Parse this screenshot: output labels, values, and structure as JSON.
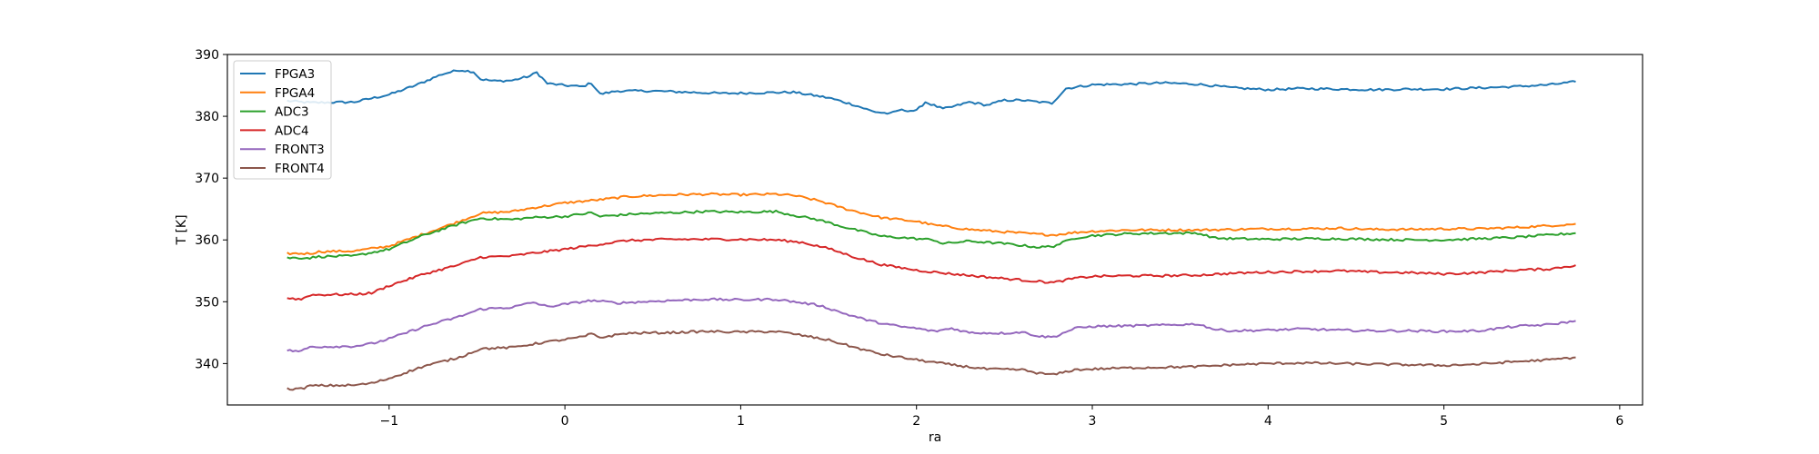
{
  "chart_data": {
    "type": "line",
    "title": "",
    "xlabel": "ra",
    "ylabel": "T [K]",
    "xlim": [
      -1.92,
      6.13
    ],
    "ylim": [
      333.3,
      390.0
    ],
    "xticks": [
      -1,
      0,
      1,
      2,
      3,
      4,
      5,
      6
    ],
    "xtick_labels": [
      "−1",
      "0",
      "1",
      "2",
      "3",
      "4",
      "5",
      "6"
    ],
    "yticks": [
      340,
      350,
      360,
      370,
      380,
      390
    ],
    "ytick_labels": [
      "340",
      "350",
      "360",
      "370",
      "380",
      "390"
    ],
    "grid": false,
    "legend_position": "top-left",
    "series": [
      {
        "name": "FPGA3",
        "color": "#1f77b4",
        "points": [
          [
            -1.58,
            382.5
          ],
          [
            -1.45,
            382.2
          ],
          [
            -1.2,
            382.3
          ],
          [
            -1.0,
            383.5
          ],
          [
            -0.85,
            385.0
          ],
          [
            -0.7,
            386.8
          ],
          [
            -0.6,
            387.5
          ],
          [
            -0.52,
            387.2
          ],
          [
            -0.48,
            386.0
          ],
          [
            -0.4,
            385.7
          ],
          [
            -0.3,
            385.8
          ],
          [
            -0.2,
            386.5
          ],
          [
            -0.16,
            387.1
          ],
          [
            -0.1,
            385.3
          ],
          [
            0.0,
            385.0
          ],
          [
            0.1,
            384.8
          ],
          [
            0.15,
            385.4
          ],
          [
            0.2,
            383.6
          ],
          [
            0.3,
            384.1
          ],
          [
            0.5,
            384.1
          ],
          [
            0.7,
            383.9
          ],
          [
            0.9,
            383.7
          ],
          [
            1.1,
            383.8
          ],
          [
            1.3,
            383.9
          ],
          [
            1.5,
            383.0
          ],
          [
            1.65,
            381.8
          ],
          [
            1.75,
            380.8
          ],
          [
            1.85,
            380.4
          ],
          [
            1.9,
            381.0
          ],
          [
            2.0,
            380.9
          ],
          [
            2.05,
            382.3
          ],
          [
            2.15,
            381.2
          ],
          [
            2.2,
            381.5
          ],
          [
            2.3,
            382.3
          ],
          [
            2.4,
            381.8
          ],
          [
            2.5,
            382.6
          ],
          [
            2.6,
            382.6
          ],
          [
            2.7,
            382.3
          ],
          [
            2.77,
            382.1
          ],
          [
            2.85,
            384.5
          ],
          [
            3.0,
            385.1
          ],
          [
            3.2,
            385.2
          ],
          [
            3.4,
            385.4
          ],
          [
            3.6,
            385.2
          ],
          [
            3.8,
            384.6
          ],
          [
            4.0,
            384.3
          ],
          [
            4.2,
            384.5
          ],
          [
            4.4,
            384.4
          ],
          [
            4.6,
            384.3
          ],
          [
            4.8,
            384.4
          ],
          [
            5.0,
            384.4
          ],
          [
            5.2,
            384.6
          ],
          [
            5.4,
            384.8
          ],
          [
            5.6,
            385.1
          ],
          [
            5.75,
            385.6
          ]
        ]
      },
      {
        "name": "FPGA4",
        "color": "#ff7f0e",
        "points": [
          [
            -1.58,
            357.8
          ],
          [
            -1.45,
            357.8
          ],
          [
            -1.4,
            358.1
          ],
          [
            -1.2,
            358.2
          ],
          [
            -1.0,
            359.0
          ],
          [
            -0.8,
            361.0
          ],
          [
            -0.6,
            363.0
          ],
          [
            -0.48,
            364.3
          ],
          [
            -0.3,
            364.6
          ],
          [
            -0.2,
            365.1
          ],
          [
            0.0,
            366.0
          ],
          [
            0.2,
            366.5
          ],
          [
            0.35,
            367.0
          ],
          [
            0.6,
            367.3
          ],
          [
            0.8,
            367.4
          ],
          [
            1.0,
            367.3
          ],
          [
            1.2,
            367.4
          ],
          [
            1.3,
            367.2
          ],
          [
            1.45,
            366.3
          ],
          [
            1.6,
            365.0
          ],
          [
            1.8,
            363.6
          ],
          [
            2.0,
            363.0
          ],
          [
            2.1,
            362.4
          ],
          [
            2.3,
            361.7
          ],
          [
            2.5,
            361.3
          ],
          [
            2.7,
            360.9
          ],
          [
            2.78,
            360.8
          ],
          [
            2.9,
            361.2
          ],
          [
            3.0,
            361.4
          ],
          [
            3.2,
            361.6
          ],
          [
            3.4,
            361.6
          ],
          [
            3.6,
            361.6
          ],
          [
            3.8,
            361.7
          ],
          [
            4.0,
            361.8
          ],
          [
            4.2,
            361.8
          ],
          [
            4.4,
            361.9
          ],
          [
            4.6,
            361.7
          ],
          [
            4.8,
            361.7
          ],
          [
            5.0,
            361.8
          ],
          [
            5.2,
            361.8
          ],
          [
            5.4,
            362.0
          ],
          [
            5.6,
            362.3
          ],
          [
            5.75,
            362.6
          ]
        ]
      },
      {
        "name": "ADC3",
        "color": "#2ca02c",
        "points": [
          [
            -1.58,
            357.1
          ],
          [
            -1.45,
            357.1
          ],
          [
            -1.4,
            357.3
          ],
          [
            -1.2,
            357.4
          ],
          [
            -1.0,
            358.5
          ],
          [
            -0.8,
            360.8
          ],
          [
            -0.6,
            362.6
          ],
          [
            -0.48,
            363.5
          ],
          [
            -0.3,
            363.3
          ],
          [
            -0.2,
            363.6
          ],
          [
            0.0,
            363.8
          ],
          [
            0.15,
            364.4
          ],
          [
            0.2,
            363.8
          ],
          [
            0.4,
            364.2
          ],
          [
            0.6,
            364.4
          ],
          [
            0.8,
            364.6
          ],
          [
            1.0,
            364.5
          ],
          [
            1.2,
            364.6
          ],
          [
            1.3,
            364.0
          ],
          [
            1.45,
            363.2
          ],
          [
            1.6,
            362.0
          ],
          [
            1.8,
            360.6
          ],
          [
            2.0,
            360.2
          ],
          [
            2.1,
            360.0
          ],
          [
            2.15,
            359.4
          ],
          [
            2.3,
            359.8
          ],
          [
            2.5,
            359.4
          ],
          [
            2.7,
            358.8
          ],
          [
            2.78,
            359.0
          ],
          [
            2.9,
            360.3
          ],
          [
            3.0,
            360.7
          ],
          [
            3.2,
            361.0
          ],
          [
            3.4,
            361.1
          ],
          [
            3.6,
            361.1
          ],
          [
            3.7,
            360.3
          ],
          [
            3.8,
            360.2
          ],
          [
            4.0,
            360.1
          ],
          [
            4.2,
            360.2
          ],
          [
            4.4,
            360.2
          ],
          [
            4.6,
            360.1
          ],
          [
            4.8,
            360.0
          ],
          [
            5.0,
            360.0
          ],
          [
            5.2,
            360.2
          ],
          [
            5.4,
            360.4
          ],
          [
            5.6,
            360.8
          ],
          [
            5.75,
            361.1
          ]
        ]
      },
      {
        "name": "ADC4",
        "color": "#d62728",
        "points": [
          [
            -1.58,
            350.6
          ],
          [
            -1.5,
            350.4
          ],
          [
            -1.45,
            351.1
          ],
          [
            -1.2,
            351.2
          ],
          [
            -1.1,
            351.4
          ],
          [
            -1.0,
            352.6
          ],
          [
            -0.8,
            354.5
          ],
          [
            -0.6,
            356.0
          ],
          [
            -0.48,
            357.2
          ],
          [
            -0.3,
            357.4
          ],
          [
            -0.2,
            357.8
          ],
          [
            0.0,
            358.5
          ],
          [
            0.2,
            359.3
          ],
          [
            0.35,
            359.9
          ],
          [
            0.6,
            360.1
          ],
          [
            0.8,
            360.1
          ],
          [
            1.0,
            360.1
          ],
          [
            1.2,
            360.0
          ],
          [
            1.35,
            359.6
          ],
          [
            1.5,
            358.6
          ],
          [
            1.65,
            357.2
          ],
          [
            1.8,
            356.0
          ],
          [
            2.0,
            355.1
          ],
          [
            2.2,
            354.5
          ],
          [
            2.4,
            354.0
          ],
          [
            2.6,
            353.5
          ],
          [
            2.78,
            353.1
          ],
          [
            2.9,
            353.8
          ],
          [
            3.0,
            354.1
          ],
          [
            3.2,
            354.2
          ],
          [
            3.4,
            354.2
          ],
          [
            3.6,
            354.3
          ],
          [
            3.8,
            354.6
          ],
          [
            4.0,
            354.8
          ],
          [
            4.2,
            354.9
          ],
          [
            4.4,
            355.0
          ],
          [
            4.6,
            354.8
          ],
          [
            4.8,
            354.7
          ],
          [
            5.0,
            354.5
          ],
          [
            5.2,
            354.7
          ],
          [
            5.4,
            355.1
          ],
          [
            5.6,
            355.3
          ],
          [
            5.75,
            355.9
          ]
        ]
      },
      {
        "name": "FRONT3",
        "color": "#9467bd",
        "points": [
          [
            -1.58,
            342.1
          ],
          [
            -1.5,
            342.0
          ],
          [
            -1.45,
            342.7
          ],
          [
            -1.2,
            342.8
          ],
          [
            -1.1,
            343.2
          ],
          [
            -1.0,
            344.0
          ],
          [
            -0.8,
            346.0
          ],
          [
            -0.6,
            347.6
          ],
          [
            -0.48,
            348.8
          ],
          [
            -0.3,
            349.1
          ],
          [
            -0.18,
            349.9
          ],
          [
            -0.1,
            349.2
          ],
          [
            0.0,
            349.6
          ],
          [
            0.15,
            350.2
          ],
          [
            0.3,
            349.8
          ],
          [
            0.6,
            350.2
          ],
          [
            0.8,
            350.4
          ],
          [
            1.0,
            350.3
          ],
          [
            1.2,
            350.4
          ],
          [
            1.3,
            350.0
          ],
          [
            1.45,
            349.4
          ],
          [
            1.6,
            348.0
          ],
          [
            1.75,
            346.8
          ],
          [
            1.9,
            346.0
          ],
          [
            2.0,
            345.7
          ],
          [
            2.1,
            345.2
          ],
          [
            2.2,
            345.7
          ],
          [
            2.3,
            345.0
          ],
          [
            2.5,
            344.9
          ],
          [
            2.6,
            345.1
          ],
          [
            2.7,
            344.4
          ],
          [
            2.78,
            344.3
          ],
          [
            2.9,
            345.7
          ],
          [
            3.0,
            346.0
          ],
          [
            3.2,
            346.1
          ],
          [
            3.4,
            346.2
          ],
          [
            3.6,
            346.4
          ],
          [
            3.7,
            345.5
          ],
          [
            3.8,
            345.3
          ],
          [
            4.0,
            345.4
          ],
          [
            4.2,
            345.6
          ],
          [
            4.4,
            345.4
          ],
          [
            4.6,
            345.3
          ],
          [
            4.8,
            345.3
          ],
          [
            5.0,
            345.2
          ],
          [
            5.2,
            345.3
          ],
          [
            5.4,
            346.0
          ],
          [
            5.6,
            346.3
          ],
          [
            5.75,
            346.9
          ]
        ]
      },
      {
        "name": "FRONT4",
        "color": "#8c564b",
        "points": [
          [
            -1.58,
            335.9
          ],
          [
            -1.5,
            335.9
          ],
          [
            -1.45,
            336.4
          ],
          [
            -1.2,
            336.5
          ],
          [
            -1.1,
            336.8
          ],
          [
            -1.0,
            337.6
          ],
          [
            -0.8,
            339.6
          ],
          [
            -0.6,
            341.0
          ],
          [
            -0.48,
            342.4
          ],
          [
            -0.3,
            342.6
          ],
          [
            -0.15,
            343.3
          ],
          [
            0.0,
            343.9
          ],
          [
            0.1,
            344.3
          ],
          [
            0.15,
            344.8
          ],
          [
            0.2,
            344.2
          ],
          [
            0.35,
            344.9
          ],
          [
            0.6,
            345.0
          ],
          [
            0.8,
            345.2
          ],
          [
            1.0,
            345.1
          ],
          [
            1.2,
            345.2
          ],
          [
            1.3,
            344.8
          ],
          [
            1.5,
            343.8
          ],
          [
            1.65,
            342.6
          ],
          [
            1.8,
            341.5
          ],
          [
            2.0,
            340.6
          ],
          [
            2.2,
            339.8
          ],
          [
            2.4,
            339.1
          ],
          [
            2.6,
            339.0
          ],
          [
            2.7,
            338.4
          ],
          [
            2.78,
            338.2
          ],
          [
            2.9,
            339.0
          ],
          [
            3.0,
            339.1
          ],
          [
            3.2,
            339.3
          ],
          [
            3.4,
            339.4
          ],
          [
            3.6,
            339.5
          ],
          [
            3.8,
            339.8
          ],
          [
            4.0,
            340.0
          ],
          [
            4.2,
            340.1
          ],
          [
            4.4,
            340.0
          ],
          [
            4.6,
            339.9
          ],
          [
            4.8,
            339.8
          ],
          [
            5.0,
            339.7
          ],
          [
            5.2,
            339.9
          ],
          [
            5.4,
            340.3
          ],
          [
            5.6,
            340.6
          ],
          [
            5.75,
            341.0
          ]
        ]
      }
    ]
  }
}
